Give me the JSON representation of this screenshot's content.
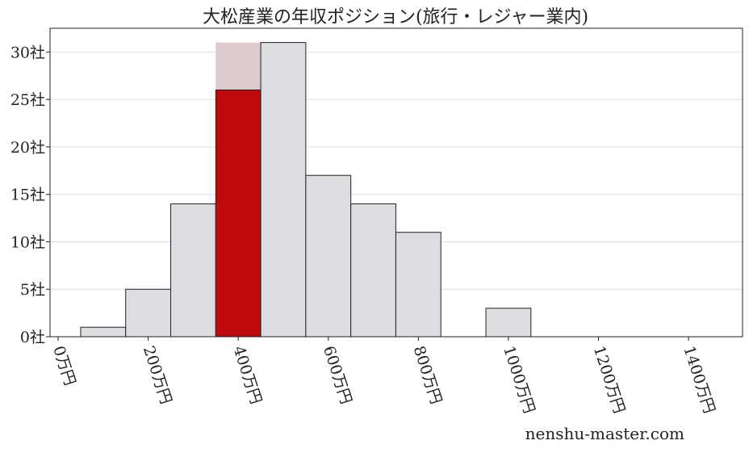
{
  "chart_data": {
    "type": "bar",
    "title": "大松産業の年収ポジション(旅行・レジャー業内)",
    "xlabel": "",
    "ylabel": "",
    "bins": [
      [
        50,
        150
      ],
      [
        150,
        250
      ],
      [
        250,
        350
      ],
      [
        350,
        450
      ],
      [
        450,
        550
      ],
      [
        550,
        650
      ],
      [
        650,
        750
      ],
      [
        750,
        850
      ],
      [
        850,
        950
      ],
      [
        950,
        1050
      ]
    ],
    "values": [
      1,
      5,
      14,
      26,
      31,
      17,
      14,
      11,
      0,
      3
    ],
    "highlight_index": 3,
    "highlight_background_value": 31,
    "xlim": [
      -18,
      1520
    ],
    "ylim": [
      0,
      32.5
    ],
    "xticks": [
      0,
      200,
      400,
      600,
      800,
      1000,
      1200,
      1400
    ],
    "xtick_labels": [
      "0万円",
      "200万円",
      "400万円",
      "600万円",
      "800万円",
      "1000万円",
      "1200万円",
      "1400万円"
    ],
    "yticks": [
      0,
      5,
      10,
      15,
      20,
      25,
      30
    ],
    "ytick_labels": [
      "0社",
      "5社",
      "10社",
      "15社",
      "20社",
      "25社",
      "30社"
    ],
    "grid": "horizontal",
    "colors": {
      "bar": "#dcdde0",
      "highlight": "#bd0a0a",
      "highlight_background": "#dccccd",
      "grid": "#dddddd"
    }
  },
  "watermark": "nenshu-master.com"
}
